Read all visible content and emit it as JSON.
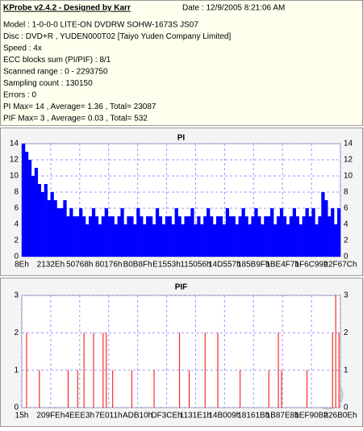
{
  "header": {
    "title": "KProbe v2.4.2 - Designed by Karr",
    "date": "Date : 12/9/2005 8:21:06 AM",
    "lines": [
      "Model : 1-0-0-0 LITE-ON DVDRW SOHW-1673S JS07",
      "Disc : DVD+R , YUDEN000T02 [Taiyo Yuden Company Limited]",
      "Speed : 4x",
      "ECC blocks sum (PI/PIF) : 8/1",
      "Scanned range : 0 - 2293750",
      "Sampling count : 130150",
      "Errors : 0",
      "PI Max= 14 , Average= 1.36 , Total= 23087",
      "PIF Max= 3 , Average= 0.03 , Total= 532"
    ]
  },
  "chart_data": [
    {
      "type": "bar",
      "title": "PI",
      "color": "#0000ff",
      "grid": true,
      "ylim": [
        0,
        14
      ],
      "yticks": [
        0,
        2,
        4,
        6,
        8,
        10,
        12,
        14
      ],
      "x_labels": [
        "8Eh",
        "2132Eh",
        "50768h",
        "80176h",
        "B0B8Fh",
        "E1553h",
        "115056h",
        "14D557h",
        "185B9Fh",
        "1BE4F7h",
        "1F6C99h",
        "22F67Ch"
      ],
      "values": [
        14,
        13,
        12,
        10,
        11,
        9,
        8,
        9,
        7,
        8,
        7,
        6,
        6,
        7,
        5,
        6,
        5,
        5,
        6,
        5,
        4,
        5,
        6,
        5,
        4,
        5,
        6,
        5,
        5,
        4,
        5,
        6,
        4,
        5,
        5,
        4,
        6,
        5,
        4,
        5,
        5,
        4,
        6,
        5,
        4,
        5,
        5,
        4,
        6,
        5,
        4,
        5,
        5,
        6,
        4,
        5,
        4,
        5,
        6,
        5,
        4,
        5,
        5,
        4,
        6,
        5,
        5,
        4,
        5,
        6,
        5,
        4,
        5,
        6,
        5,
        4,
        5,
        5,
        6,
        4,
        5,
        6,
        5,
        4,
        5,
        6,
        5,
        4,
        5,
        6,
        5,
        6,
        4,
        5,
        8,
        7,
        5,
        6,
        4,
        6
      ]
    },
    {
      "type": "bar",
      "title": "PIF",
      "color": "#ff0000",
      "grid": true,
      "ylim": [
        0,
        3
      ],
      "yticks": [
        0,
        1,
        2,
        3
      ],
      "x_labels": [
        "15h",
        "209FEh",
        "4EEE3h",
        "7E011h",
        "ADB10h",
        "DF3CEh",
        "1131E1h",
        "14B009h",
        "18161Bh",
        "1B87E8h",
        "1EF90Bh",
        "226B0Eh"
      ],
      "values": [
        0,
        2,
        0,
        0,
        0,
        1,
        0,
        0,
        0,
        0,
        0,
        0,
        0,
        0,
        1,
        0,
        0,
        1,
        0,
        2,
        0,
        0,
        2,
        0,
        0,
        2,
        2,
        0,
        1,
        0,
        0,
        0,
        0,
        0,
        1,
        0,
        0,
        0,
        0,
        0,
        0,
        1,
        0,
        0,
        0,
        0,
        0,
        0,
        0,
        2,
        0,
        0,
        1,
        0,
        0,
        0,
        0,
        2,
        0,
        0,
        0,
        2,
        0,
        0,
        0,
        0,
        0,
        0,
        1,
        0,
        0,
        0,
        0,
        0,
        0,
        0,
        0,
        1,
        0,
        0,
        2,
        1,
        0,
        0,
        0,
        0,
        0,
        0,
        0,
        1,
        0,
        0,
        0,
        0,
        0,
        0,
        0,
        2,
        3,
        2
      ]
    }
  ]
}
